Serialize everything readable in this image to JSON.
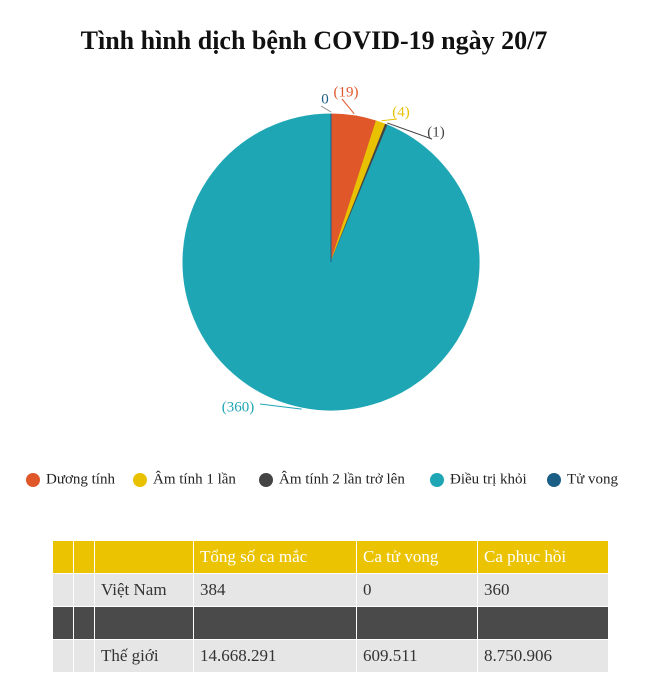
{
  "chart_data": {
    "type": "pie",
    "title": "Tình hình dịch bệnh COVID-19 ngày 20/7",
    "categories": [
      "Dương tính",
      "Âm tính 1 lần",
      "Âm tính 2 lần trở lên",
      "Điều trị khỏi",
      "Tử vong"
    ],
    "values": [
      19,
      4,
      1,
      360,
      0
    ],
    "value_labels": [
      "(19)",
      "(4)",
      "(1)",
      "(360)",
      "0"
    ],
    "colors": [
      "#e0572a",
      "#e8c200",
      "#444444",
      "#1fa6b5",
      "#1b5e86"
    ],
    "legend": "bottom"
  },
  "table": {
    "header": [
      "Tổng số ca mắc",
      "Ca tử vong",
      "Ca phục hồi"
    ],
    "rows": [
      [
        "Việt Nam",
        "384",
        "0",
        "360"
      ],
      [
        "Thế giới",
        "14.668.291",
        "609.511",
        "8.750.906"
      ]
    ]
  }
}
